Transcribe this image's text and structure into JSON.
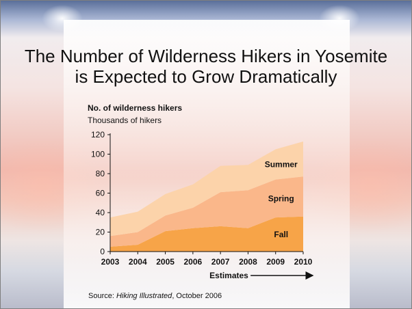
{
  "title_line1": "The Number of Wilderness Hikers in Yosemite",
  "title_line2": "is Expected to Grow Dramatically",
  "chart_heading": "No. of wilderness hikers",
  "chart_subheading": "Thousands of hikers",
  "estimates_label": "Estimates",
  "source": {
    "prefix": "Source:",
    "publication": "Hiking Illustrated",
    "suffix": ", October 2006"
  },
  "colors": {
    "fall": "#f7a448",
    "spring": "#fab78a",
    "summer": "#fcd3aa"
  },
  "chart_data": {
    "type": "area",
    "stacked": true,
    "x": [
      "2003",
      "2004",
      "2005",
      "2006",
      "2007",
      "2008",
      "2009",
      "2010"
    ],
    "series": [
      {
        "name": "Fall",
        "values": [
          5,
          7,
          21,
          24,
          26,
          24,
          35,
          36
        ]
      },
      {
        "name": "Spring",
        "values": [
          11,
          13,
          16,
          21,
          35,
          39,
          39,
          41
        ]
      },
      {
        "name": "Summer",
        "values": [
          19,
          21,
          22,
          24,
          27,
          26,
          31,
          36
        ]
      }
    ],
    "ylim": [
      0,
      120
    ],
    "yticks": [
      0,
      20,
      40,
      60,
      80,
      100,
      120
    ],
    "estimates_from": "2007",
    "grid": false,
    "legend": "inline labels on areas"
  }
}
